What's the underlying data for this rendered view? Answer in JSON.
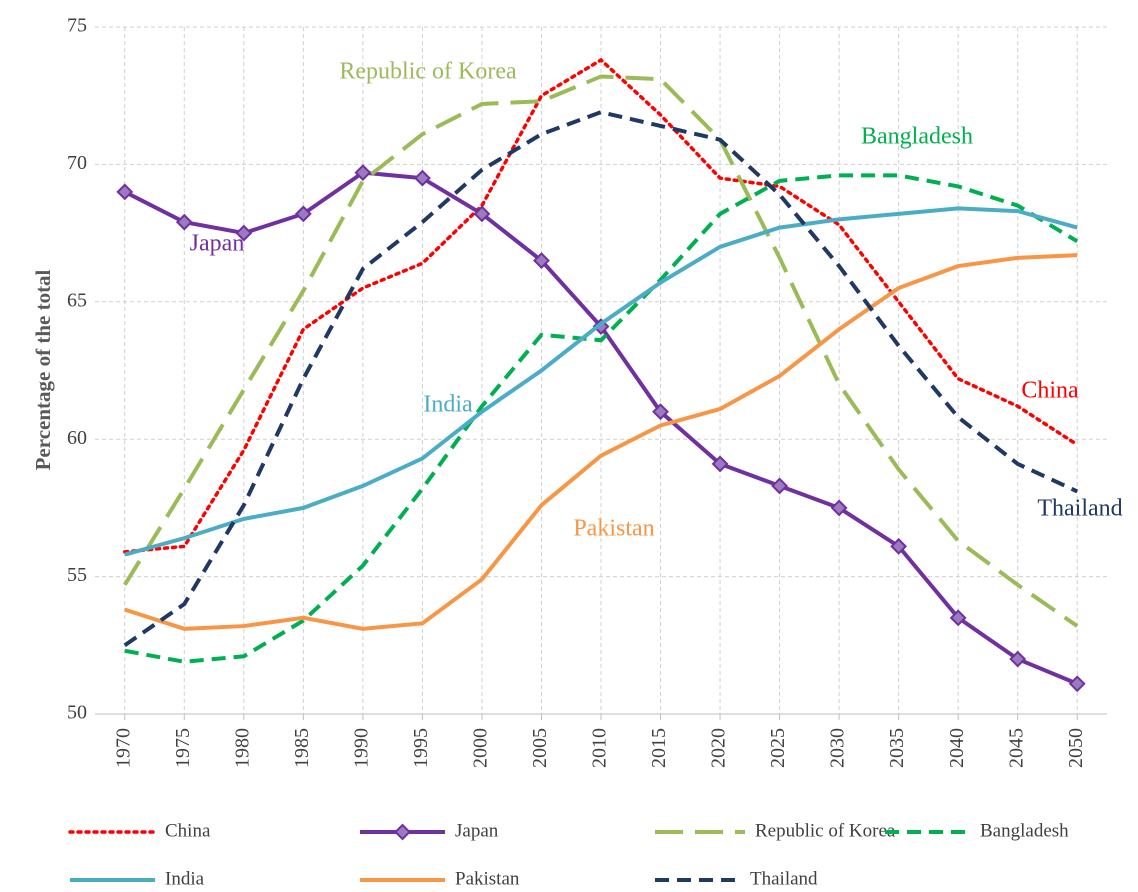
{
  "chart_data": {
    "type": "line",
    "y_axis_label": "Percentage of the total",
    "categories": [
      "1970",
      "1975",
      "1980",
      "1985",
      "1990",
      "1995",
      "2000",
      "2005",
      "2010",
      "2015",
      "2020",
      "2025",
      "2030",
      "2035",
      "2040",
      "2045",
      "2050"
    ],
    "ylim": [
      50,
      75
    ],
    "yticks": [
      50,
      55,
      60,
      65,
      70,
      75
    ],
    "grid": true,
    "legend": "bottom",
    "series": [
      {
        "name": "China",
        "color": "#ff0000",
        "style": "dotted",
        "values": [
          55.9,
          56.1,
          59.6,
          64.0,
          65.5,
          66.4,
          68.5,
          72.5,
          73.8,
          71.8,
          69.5,
          69.2,
          67.8,
          65.0,
          62.2,
          61.2,
          59.8
        ]
      },
      {
        "name": "Japan",
        "color": "#7030a0",
        "style": "solid",
        "marker": "diamond",
        "values": [
          69.0,
          67.9,
          67.5,
          68.2,
          69.7,
          69.5,
          68.2,
          66.5,
          64.1,
          61.0,
          59.1,
          58.3,
          57.5,
          56.1,
          53.5,
          52.0,
          51.1
        ]
      },
      {
        "name": "Republic of Korea",
        "color": "#9bbb59",
        "style": "long-dash",
        "values": [
          54.7,
          58.2,
          61.8,
          65.4,
          69.4,
          71.1,
          72.2,
          72.3,
          73.2,
          73.1,
          70.9,
          66.6,
          62.0,
          58.9,
          56.3,
          54.7,
          53.2
        ]
      },
      {
        "name": "Bangladesh",
        "color": "#00b050",
        "style": "dashed",
        "values": [
          52.3,
          51.9,
          52.1,
          53.4,
          55.4,
          58.2,
          61.2,
          63.8,
          63.6,
          65.8,
          68.2,
          69.4,
          69.6,
          69.6,
          69.2,
          68.5,
          67.2
        ]
      },
      {
        "name": "India",
        "color": "#4bacc6",
        "style": "solid",
        "values": [
          55.8,
          56.4,
          57.1,
          57.5,
          58.3,
          59.3,
          61.0,
          62.5,
          64.2,
          65.7,
          67.0,
          67.7,
          68.0,
          68.2,
          68.4,
          68.3,
          67.7
        ]
      },
      {
        "name": "Pakistan",
        "color": "#f79646",
        "style": "solid",
        "values": [
          53.8,
          53.1,
          53.2,
          53.5,
          53.1,
          53.3,
          54.9,
          57.6,
          59.4,
          60.5,
          61.1,
          62.3,
          64.0,
          65.5,
          66.3,
          66.6,
          66.7
        ]
      },
      {
        "name": "Thailand",
        "color": "#1f3864",
        "style": "dashed",
        "values": [
          52.5,
          54.0,
          57.6,
          62.2,
          66.2,
          67.9,
          69.8,
          71.1,
          71.9,
          71.4,
          70.9,
          68.9,
          66.3,
          63.4,
          60.8,
          59.1,
          58.1
        ]
      }
    ],
    "annotations": [
      "Republic of Korea",
      "Bangladesh",
      "Japan",
      "India",
      "China",
      "Pakistan",
      "Thailand"
    ]
  }
}
